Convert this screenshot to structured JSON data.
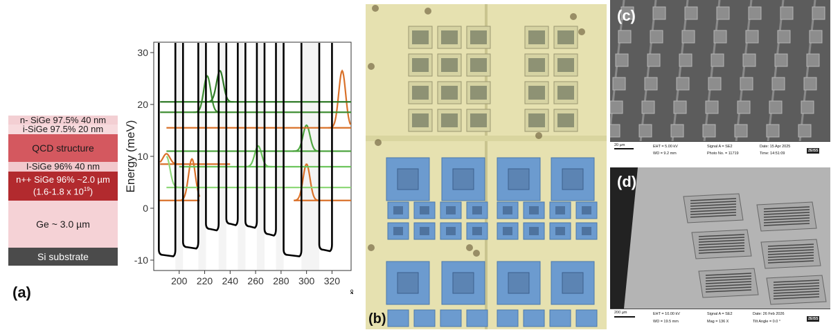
{
  "panel_a": {
    "label": "(a)",
    "layers": [
      {
        "text": "n- SiGe 97.5% 40 nm",
        "color": "#f3cfd3"
      },
      {
        "text": "i-SiGe 97.5% 20 nm",
        "color": "#f7dadd"
      },
      {
        "text": "QCD structure",
        "color": "#d4585f"
      },
      {
        "text": "I-SiGe 96% 40 nm",
        "color": "#f2c8cc"
      },
      {
        "text": "n++ SiGe 96% ~2.0 µm",
        "text2": "(1.6-1.8 x 10",
        "sup": "19",
        "text2_end": ")",
        "color": "#b22a2e"
      },
      {
        "text": "Ge ~ 3.0 µm",
        "color": "#f5d2d6"
      },
      {
        "text": "Si substrate",
        "color": "#4b4b4b"
      }
    ]
  },
  "chart_data": {
    "type": "line",
    "ylabel": "Energy (meV)",
    "xlabel": "Å",
    "xlim": [
      180,
      335
    ],
    "ylim": [
      -12,
      32
    ],
    "xticks": [
      200,
      220,
      240,
      260,
      280,
      300,
      320
    ],
    "yticks": [
      -10,
      0,
      10,
      20,
      30
    ],
    "potential_profile": {
      "color": "#000000",
      "wells": [
        {
          "x0": 184,
          "x1": 197,
          "floor": -9
        },
        {
          "x0": 203,
          "x1": 215,
          "floor": -7.5
        },
        {
          "x0": 221,
          "x1": 231,
          "floor": -4
        },
        {
          "x0": 237,
          "x1": 246,
          "floor": -3
        },
        {
          "x0": 252,
          "x1": 261,
          "floor": -3.5
        },
        {
          "x0": 267,
          "x1": 276,
          "floor": -5
        },
        {
          "x0": 282,
          "x1": 296,
          "floor": -9
        },
        {
          "x0": 310,
          "x1": 320,
          "floor": -8
        }
      ]
    },
    "states": [
      {
        "level": 1.5,
        "x": [
          184,
          216
        ],
        "color": "#d9712a",
        "peak_at": 210,
        "amp": 8
      },
      {
        "level": 1.5,
        "x": [
          290,
          335
        ],
        "color": "#d9712a",
        "peak_at": 300,
        "amp": 7
      },
      {
        "level": 8.5,
        "x": [
          185,
          240
        ],
        "color": "#d9712a",
        "peak_at": 190,
        "amp": 2
      },
      {
        "level": 4,
        "x": [
          190,
          335
        ],
        "color": "#8fd87a",
        "peak_at": 190,
        "amp": 6
      },
      {
        "level": 8,
        "x": [
          200,
          335
        ],
        "color": "#6cc45c",
        "peak_at": 262,
        "amp": 4
      },
      {
        "level": 11,
        "x": [
          190,
          335
        ],
        "color": "#4ea540",
        "peak_at": 300,
        "amp": 5
      },
      {
        "level": 15.5,
        "x": [
          190,
          335
        ],
        "color": "#d9712a",
        "peak_at": 328,
        "amp": 11
      },
      {
        "level": 18.5,
        "x": [
          185,
          335
        ],
        "color": "#3f8d33",
        "peak_at": 222,
        "amp": 7
      },
      {
        "level": 20.5,
        "x": [
          185,
          335
        ],
        "color": "#2f7a27",
        "peak_at": 232,
        "amp": 6
      }
    ]
  },
  "panel_b": {
    "label": "(b)"
  },
  "panel_c": {
    "label": "(c)",
    "scale": "20 µm",
    "eht": "EHT = 5.00 kV",
    "wd": "WD = 9.2 mm",
    "signal": "Signal A = SE2",
    "photo": "Photo No. = 11719",
    "date": "Date: 15 Apr 2025",
    "time": "Time: 14:51:09",
    "brand": "ZEISS"
  },
  "panel_d": {
    "label": "(d)",
    "scale": "200 µm",
    "eht": "EHT = 10.00 kV",
    "wd": "WD = 19.5 mm",
    "signal": "Signal A = SE2",
    "mag": "Mag =   136 X",
    "date": "Date: 26 Feb 2026",
    "tilt": "Tilt Angle =   0.0 °",
    "brand": "ZEISS"
  }
}
